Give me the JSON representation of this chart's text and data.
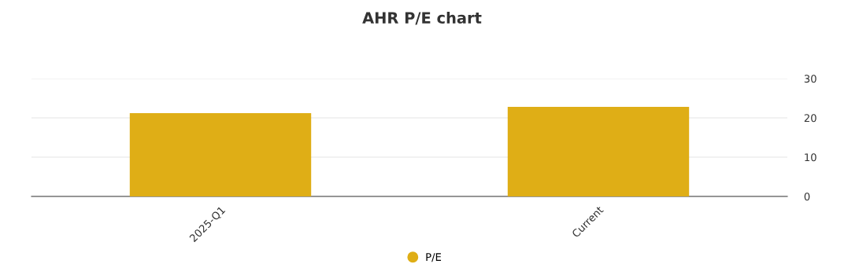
{
  "chart_data": {
    "type": "bar",
    "title": "AHR P/E chart",
    "categories": [
      "2025-Q1",
      "Current"
    ],
    "series": [
      {
        "name": "P/E",
        "color": "#dfae16",
        "values": [
          21.2,
          22.8
        ]
      }
    ],
    "ylim": [
      0,
      30
    ],
    "yticks": [
      0,
      10,
      20,
      30
    ],
    "grid": "y",
    "legend": "bottom"
  }
}
